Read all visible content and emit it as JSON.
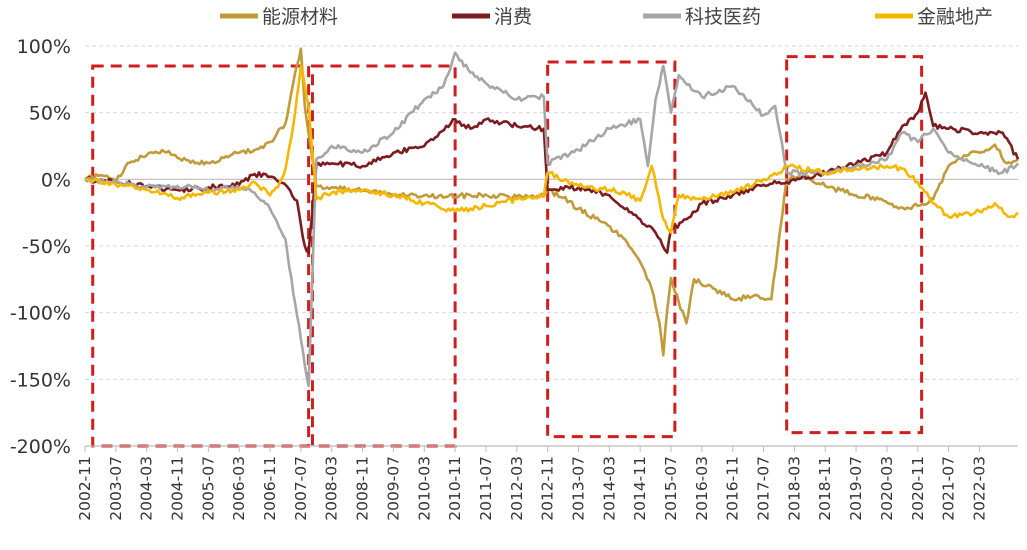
{
  "chart_data": {
    "type": "line",
    "y_ticks": [
      "100%",
      "50%",
      "0%",
      "-50%",
      "-100%",
      "-150%",
      "-200%"
    ],
    "ylim": [
      -200,
      100
    ],
    "x_ticks": [
      "2002-11",
      "2003-07",
      "2004-03",
      "2004-11",
      "2005-07",
      "2006-03",
      "2006-11",
      "2007-07",
      "2008-03",
      "2008-11",
      "2009-07",
      "2010-03",
      "2010-11",
      "2011-07",
      "2012-03",
      "2012-11",
      "2013-07",
      "2014-03",
      "2014-11",
      "2015-07",
      "2016-03",
      "2016-11",
      "2017-07",
      "2018-03",
      "2018-11",
      "2019-07",
      "2020-03",
      "2020-11",
      "2021-07",
      "2022-03"
    ],
    "xlim": [
      "2002-11",
      "2023-01"
    ],
    "grid": true,
    "legend_position": "top",
    "series": [
      {
        "name": "能源材料",
        "color": "#bf9b3a",
        "points": [
          [
            "2002-11",
            0
          ],
          [
            "2003-03",
            3
          ],
          [
            "2003-07",
            -2
          ],
          [
            "2003-10",
            12
          ],
          [
            "2004-03",
            18
          ],
          [
            "2004-07",
            22
          ],
          [
            "2004-11",
            16
          ],
          [
            "2005-03",
            14
          ],
          [
            "2005-07",
            12
          ],
          [
            "2005-11",
            16
          ],
          [
            "2006-03",
            20
          ],
          [
            "2006-07",
            22
          ],
          [
            "2006-11",
            28
          ],
          [
            "2007-03",
            42
          ],
          [
            "2007-05",
            72
          ],
          [
            "2007-07",
            98
          ],
          [
            "2007-08",
            55
          ],
          [
            "2007-11",
            -5
          ],
          [
            "2008-03",
            -6
          ],
          [
            "2008-09",
            -8
          ],
          [
            "2009-03",
            -10
          ],
          [
            "2009-09",
            -12
          ],
          [
            "2010-03",
            -12
          ],
          [
            "2010-09",
            -13
          ],
          [
            "2011-03",
            -12
          ],
          [
            "2011-09",
            -12
          ],
          [
            "2012-03",
            -13
          ],
          [
            "2012-10",
            -12
          ],
          [
            "2012-11",
            -8
          ],
          [
            "2013-03",
            -14
          ],
          [
            "2013-07",
            -22
          ],
          [
            "2014-01",
            -32
          ],
          [
            "2014-06",
            -42
          ],
          [
            "2014-11",
            -62
          ],
          [
            "2015-02",
            -82
          ],
          [
            "2015-04",
            -108
          ],
          [
            "2015-05",
            -132
          ],
          [
            "2015-06",
            -98
          ],
          [
            "2015-07",
            -74
          ],
          [
            "2015-09",
            -92
          ],
          [
            "2015-11",
            -108
          ],
          [
            "2016-01",
            -75
          ],
          [
            "2016-06",
            -82
          ],
          [
            "2016-11",
            -90
          ],
          [
            "2017-04",
            -88
          ],
          [
            "2017-09",
            -90
          ],
          [
            "2018-01",
            0
          ],
          [
            "2018-06",
            2
          ],
          [
            "2018-11",
            -5
          ],
          [
            "2019-07",
            -12
          ],
          [
            "2020-01",
            -15
          ],
          [
            "2020-06",
            -22
          ],
          [
            "2020-11",
            -20
          ],
          [
            "2021-03",
            -15
          ],
          [
            "2021-07",
            10
          ],
          [
            "2021-11",
            18
          ],
          [
            "2022-03",
            20
          ],
          [
            "2022-07",
            26
          ],
          [
            "2022-10",
            12
          ],
          [
            "2023-01",
            15
          ]
        ]
      },
      {
        "name": "消费",
        "color": "#7b1c20",
        "points": [
          [
            "2002-11",
            0
          ],
          [
            "2003-07",
            -2
          ],
          [
            "2004-03",
            -5
          ],
          [
            "2004-11",
            -8
          ],
          [
            "2005-07",
            -6
          ],
          [
            "2006-03",
            -4
          ],
          [
            "2006-07",
            4
          ],
          [
            "2006-11",
            2
          ],
          [
            "2007-03",
            -4
          ],
          [
            "2007-06",
            -16
          ],
          [
            "2007-08",
            -50
          ],
          [
            "2007-09",
            -55
          ],
          [
            "2007-11",
            10
          ],
          [
            "2008-03",
            12
          ],
          [
            "2008-11",
            10
          ],
          [
            "2009-07",
            20
          ],
          [
            "2010-03",
            25
          ],
          [
            "2010-11",
            45
          ],
          [
            "2011-03",
            38
          ],
          [
            "2011-07",
            45
          ],
          [
            "2012-03",
            40
          ],
          [
            "2012-10",
            38
          ],
          [
            "2012-11",
            -8
          ],
          [
            "2013-07",
            -6
          ],
          [
            "2014-03",
            -12
          ],
          [
            "2014-11",
            -30
          ],
          [
            "2015-03",
            -40
          ],
          [
            "2015-06",
            -55
          ],
          [
            "2015-07",
            -38
          ],
          [
            "2015-11",
            -30
          ],
          [
            "2016-03",
            -18
          ],
          [
            "2016-11",
            -12
          ],
          [
            "2017-07",
            -4
          ],
          [
            "2017-11",
            -2
          ],
          [
            "2018-01",
            -2
          ],
          [
            "2018-11",
            5
          ],
          [
            "2019-07",
            12
          ],
          [
            "2020-03",
            20
          ],
          [
            "2020-07",
            40
          ],
          [
            "2020-11",
            50
          ],
          [
            "2021-01",
            65
          ],
          [
            "2021-03",
            40
          ],
          [
            "2021-07",
            38
          ],
          [
            "2022-03",
            35
          ],
          [
            "2022-09",
            35
          ],
          [
            "2023-01",
            15
          ]
        ]
      },
      {
        "name": "科技医药",
        "color": "#a6a6a6",
        "points": [
          [
            "2002-11",
            0
          ],
          [
            "2003-07",
            -2
          ],
          [
            "2004-03",
            -6
          ],
          [
            "2004-11",
            -5
          ],
          [
            "2005-07",
            -8
          ],
          [
            "2006-03",
            -6
          ],
          [
            "2006-07",
            -10
          ],
          [
            "2006-11",
            -22
          ],
          [
            "2007-03",
            -45
          ],
          [
            "2007-05",
            -85
          ],
          [
            "2007-07",
            -120
          ],
          [
            "2007-09",
            -155
          ],
          [
            "2007-11",
            15
          ],
          [
            "2008-03",
            25
          ],
          [
            "2008-11",
            20
          ],
          [
            "2009-07",
            35
          ],
          [
            "2010-03",
            60
          ],
          [
            "2010-08",
            70
          ],
          [
            "2010-11",
            95
          ],
          [
            "2011-03",
            80
          ],
          [
            "2011-07",
            72
          ],
          [
            "2012-03",
            60
          ],
          [
            "2012-10",
            62
          ],
          [
            "2012-11",
            12
          ],
          [
            "2013-07",
            22
          ],
          [
            "2014-03",
            38
          ],
          [
            "2014-11",
            45
          ],
          [
            "2015-01",
            10
          ],
          [
            "2015-03",
            60
          ],
          [
            "2015-05",
            85
          ],
          [
            "2015-07",
            50
          ],
          [
            "2015-09",
            78
          ],
          [
            "2016-03",
            62
          ],
          [
            "2016-11",
            70
          ],
          [
            "2017-07",
            48
          ],
          [
            "2017-10",
            55
          ],
          [
            "2018-01",
            5
          ],
          [
            "2018-11",
            5
          ],
          [
            "2019-07",
            10
          ],
          [
            "2020-03",
            15
          ],
          [
            "2020-07",
            35
          ],
          [
            "2020-11",
            28
          ],
          [
            "2021-03",
            38
          ],
          [
            "2021-07",
            20
          ],
          [
            "2022-03",
            10
          ],
          [
            "2022-09",
            5
          ],
          [
            "2023-01",
            12
          ]
        ]
      },
      {
        "name": "金融地产",
        "color": "#f5b700",
        "points": [
          [
            "2002-11",
            0
          ],
          [
            "2003-07",
            -4
          ],
          [
            "2004-03",
            -8
          ],
          [
            "2004-11",
            -14
          ],
          [
            "2005-07",
            -10
          ],
          [
            "2006-03",
            -8
          ],
          [
            "2006-07",
            -2
          ],
          [
            "2006-11",
            -12
          ],
          [
            "2007-01",
            -6
          ],
          [
            "2007-03",
            8
          ],
          [
            "2007-05",
            40
          ],
          [
            "2007-06",
            62
          ],
          [
            "2007-07",
            85
          ],
          [
            "2007-08",
            70
          ],
          [
            "2007-09",
            55
          ],
          [
            "2007-11",
            -15
          ],
          [
            "2008-03",
            -10
          ],
          [
            "2008-11",
            -8
          ],
          [
            "2009-07",
            -12
          ],
          [
            "2010-03",
            -18
          ],
          [
            "2010-11",
            -24
          ],
          [
            "2011-07",
            -20
          ],
          [
            "2012-03",
            -15
          ],
          [
            "2012-10",
            -13
          ],
          [
            "2012-11",
            5
          ],
          [
            "2013-07",
            -5
          ],
          [
            "2014-03",
            -8
          ],
          [
            "2014-07",
            -10
          ],
          [
            "2014-11",
            -16
          ],
          [
            "2015-02",
            10
          ],
          [
            "2015-05",
            -30
          ],
          [
            "2015-07",
            -40
          ],
          [
            "2015-09",
            -12
          ],
          [
            "2016-03",
            -15
          ],
          [
            "2016-11",
            -10
          ],
          [
            "2017-07",
            0
          ],
          [
            "2017-11",
            5
          ],
          [
            "2018-01",
            10
          ],
          [
            "2018-11",
            5
          ],
          [
            "2019-07",
            8
          ],
          [
            "2020-03",
            10
          ],
          [
            "2020-07",
            8
          ],
          [
            "2020-11",
            -2
          ],
          [
            "2021-03",
            -18
          ],
          [
            "2021-07",
            -28
          ],
          [
            "2022-03",
            -24
          ],
          [
            "2022-07",
            -18
          ],
          [
            "2022-11",
            -28
          ],
          [
            "2023-01",
            -25
          ]
        ]
      }
    ],
    "annotations": {
      "dashed_boxes": [
        {
          "from": "2003-01",
          "to": "2007-09",
          "y_top": 85,
          "y_bottom": -200
        },
        {
          "from": "2007-10",
          "to": "2010-11",
          "y_top": 85,
          "y_bottom": -200
        },
        {
          "from": "2012-11",
          "to": "2015-08",
          "y_top": 88,
          "y_bottom": -193
        },
        {
          "from": "2018-01",
          "to": "2020-12",
          "y_top": 92,
          "y_bottom": -190
        }
      ],
      "box_color": "#d01e1e"
    }
  }
}
